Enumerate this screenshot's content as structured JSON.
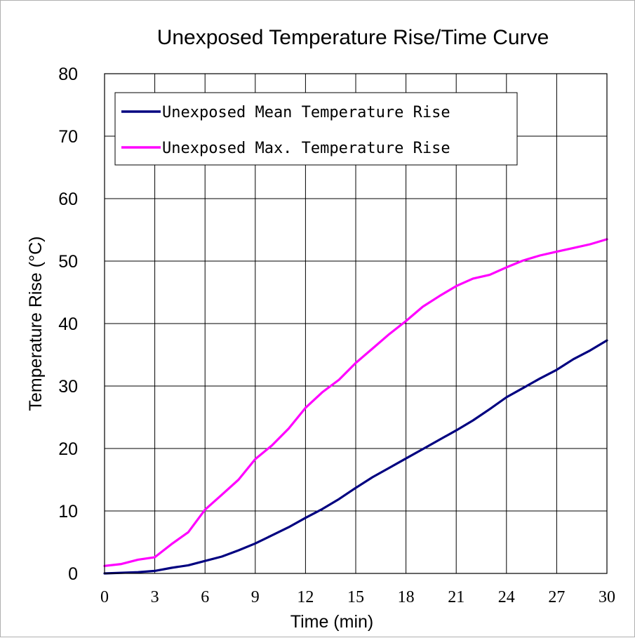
{
  "chart_data": {
    "type": "line",
    "title": "Unexposed Temperature Rise/Time Curve",
    "xlabel": "Time (min)",
    "ylabel": "Temperature Rise (°C)",
    "xlim": [
      0,
      30
    ],
    "ylim": [
      0,
      80
    ],
    "xticks": [
      "0",
      "3",
      "6",
      "9",
      "12",
      "15",
      "18",
      "21",
      "24",
      "27",
      "30"
    ],
    "yticks": [
      "0",
      "10",
      "20",
      "30",
      "40",
      "50",
      "60",
      "70",
      "80"
    ],
    "grid": true,
    "legend_position": "top-left",
    "series": [
      {
        "name": "Unexposed Mean Temperature Rise",
        "color": "#000080",
        "x": [
          0,
          1,
          2,
          3,
          4,
          5,
          6,
          7,
          8,
          9,
          10,
          11,
          12,
          13,
          14,
          15,
          16,
          17,
          18,
          19,
          20,
          21,
          22,
          23,
          24,
          25,
          26,
          27,
          28,
          29,
          30
        ],
        "y": [
          0,
          0.1,
          0.2,
          0.4,
          0.9,
          1.3,
          2.0,
          2.7,
          3.7,
          4.8,
          6.1,
          7.4,
          8.9,
          10.3,
          11.9,
          13.7,
          15.4,
          16.9,
          18.4,
          19.9,
          21.4,
          22.9,
          24.5,
          26.3,
          28.2,
          29.7,
          31.2,
          32.6,
          34.3,
          35.7,
          37.3
        ]
      },
      {
        "name": "Unexposed Max. Temperature Rise",
        "color": "#ff00ff",
        "x": [
          0,
          1,
          2,
          3,
          4,
          5,
          6,
          7,
          8,
          9,
          10,
          11,
          12,
          13,
          14,
          15,
          16,
          17,
          18,
          19,
          20,
          21,
          22,
          23,
          24,
          25,
          26,
          27,
          28,
          29,
          30
        ],
        "y": [
          1.2,
          1.5,
          2.2,
          2.6,
          4.7,
          6.6,
          10.2,
          12.6,
          15.0,
          18.3,
          20.5,
          23.2,
          26.5,
          29.0,
          31.0,
          33.7,
          36.0,
          38.3,
          40.4,
          42.7,
          44.4,
          46.0,
          47.2,
          47.8,
          49.0,
          50.1,
          50.9,
          51.5,
          52.1,
          52.7,
          53.5
        ]
      }
    ]
  }
}
